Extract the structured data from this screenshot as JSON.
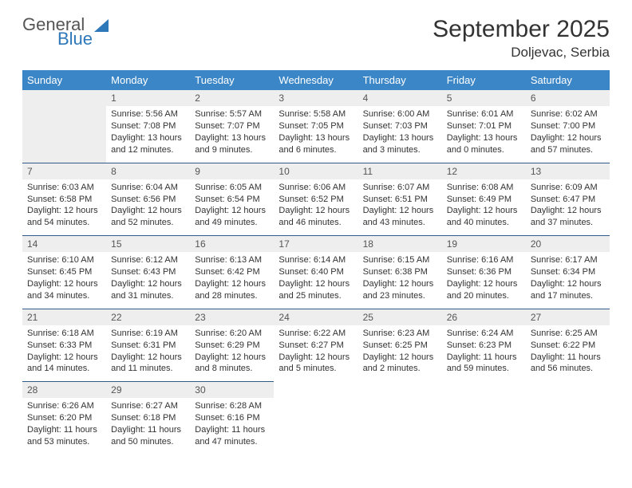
{
  "logo": {
    "line1": "General",
    "line2": "Blue"
  },
  "title": "September 2025",
  "location": "Doljevac, Serbia",
  "colors": {
    "header_bg": "#3b86c6",
    "header_text": "#ffffff",
    "cell_border": "#2e5b8a",
    "daynum_bg": "#eeeeee",
    "logo_accent": "#2e77b8"
  },
  "fonts": {
    "title_pt": 30,
    "location_pt": 17,
    "dayhead_pt": 13,
    "cell_pt": 11
  },
  "day_headers": [
    "Sunday",
    "Monday",
    "Tuesday",
    "Wednesday",
    "Thursday",
    "Friday",
    "Saturday"
  ],
  "weeks": [
    [
      null,
      {
        "n": "1",
        "sunrise": "5:56 AM",
        "sunset": "7:08 PM",
        "dl": "13 hours and 12 minutes."
      },
      {
        "n": "2",
        "sunrise": "5:57 AM",
        "sunset": "7:07 PM",
        "dl": "13 hours and 9 minutes."
      },
      {
        "n": "3",
        "sunrise": "5:58 AM",
        "sunset": "7:05 PM",
        "dl": "13 hours and 6 minutes."
      },
      {
        "n": "4",
        "sunrise": "6:00 AM",
        "sunset": "7:03 PM",
        "dl": "13 hours and 3 minutes."
      },
      {
        "n": "5",
        "sunrise": "6:01 AM",
        "sunset": "7:01 PM",
        "dl": "13 hours and 0 minutes."
      },
      {
        "n": "6",
        "sunrise": "6:02 AM",
        "sunset": "7:00 PM",
        "dl": "12 hours and 57 minutes."
      }
    ],
    [
      {
        "n": "7",
        "sunrise": "6:03 AM",
        "sunset": "6:58 PM",
        "dl": "12 hours and 54 minutes."
      },
      {
        "n": "8",
        "sunrise": "6:04 AM",
        "sunset": "6:56 PM",
        "dl": "12 hours and 52 minutes."
      },
      {
        "n": "9",
        "sunrise": "6:05 AM",
        "sunset": "6:54 PM",
        "dl": "12 hours and 49 minutes."
      },
      {
        "n": "10",
        "sunrise": "6:06 AM",
        "sunset": "6:52 PM",
        "dl": "12 hours and 46 minutes."
      },
      {
        "n": "11",
        "sunrise": "6:07 AM",
        "sunset": "6:51 PM",
        "dl": "12 hours and 43 minutes."
      },
      {
        "n": "12",
        "sunrise": "6:08 AM",
        "sunset": "6:49 PM",
        "dl": "12 hours and 40 minutes."
      },
      {
        "n": "13",
        "sunrise": "6:09 AM",
        "sunset": "6:47 PM",
        "dl": "12 hours and 37 minutes."
      }
    ],
    [
      {
        "n": "14",
        "sunrise": "6:10 AM",
        "sunset": "6:45 PM",
        "dl": "12 hours and 34 minutes."
      },
      {
        "n": "15",
        "sunrise": "6:12 AM",
        "sunset": "6:43 PM",
        "dl": "12 hours and 31 minutes."
      },
      {
        "n": "16",
        "sunrise": "6:13 AM",
        "sunset": "6:42 PM",
        "dl": "12 hours and 28 minutes."
      },
      {
        "n": "17",
        "sunrise": "6:14 AM",
        "sunset": "6:40 PM",
        "dl": "12 hours and 25 minutes."
      },
      {
        "n": "18",
        "sunrise": "6:15 AM",
        "sunset": "6:38 PM",
        "dl": "12 hours and 23 minutes."
      },
      {
        "n": "19",
        "sunrise": "6:16 AM",
        "sunset": "6:36 PM",
        "dl": "12 hours and 20 minutes."
      },
      {
        "n": "20",
        "sunrise": "6:17 AM",
        "sunset": "6:34 PM",
        "dl": "12 hours and 17 minutes."
      }
    ],
    [
      {
        "n": "21",
        "sunrise": "6:18 AM",
        "sunset": "6:33 PM",
        "dl": "12 hours and 14 minutes."
      },
      {
        "n": "22",
        "sunrise": "6:19 AM",
        "sunset": "6:31 PM",
        "dl": "12 hours and 11 minutes."
      },
      {
        "n": "23",
        "sunrise": "6:20 AM",
        "sunset": "6:29 PM",
        "dl": "12 hours and 8 minutes."
      },
      {
        "n": "24",
        "sunrise": "6:22 AM",
        "sunset": "6:27 PM",
        "dl": "12 hours and 5 minutes."
      },
      {
        "n": "25",
        "sunrise": "6:23 AM",
        "sunset": "6:25 PM",
        "dl": "12 hours and 2 minutes."
      },
      {
        "n": "26",
        "sunrise": "6:24 AM",
        "sunset": "6:23 PM",
        "dl": "11 hours and 59 minutes."
      },
      {
        "n": "27",
        "sunrise": "6:25 AM",
        "sunset": "6:22 PM",
        "dl": "11 hours and 56 minutes."
      }
    ],
    [
      {
        "n": "28",
        "sunrise": "6:26 AM",
        "sunset": "6:20 PM",
        "dl": "11 hours and 53 minutes."
      },
      {
        "n": "29",
        "sunrise": "6:27 AM",
        "sunset": "6:18 PM",
        "dl": "11 hours and 50 minutes."
      },
      {
        "n": "30",
        "sunrise": "6:28 AM",
        "sunset": "6:16 PM",
        "dl": "11 hours and 47 minutes."
      },
      null,
      null,
      null,
      null
    ]
  ],
  "labels": {
    "sunrise": "Sunrise:",
    "sunset": "Sunset:",
    "daylight": "Daylight:"
  }
}
